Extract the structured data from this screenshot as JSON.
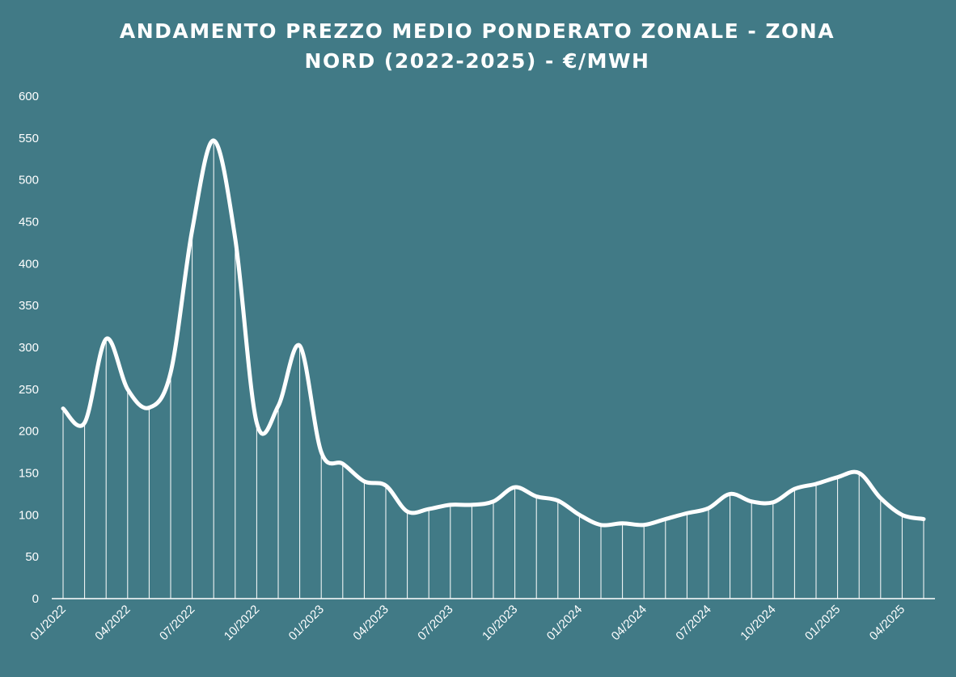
{
  "chart_data": {
    "type": "line",
    "title_lines": [
      "ANDAMENTO PREZZO MEDIO PONDERATO ZONALE - ZONA",
      "NORD (2022-2025)  - €/MWH"
    ],
    "xlabel": "",
    "ylabel": "",
    "ylim": [
      0,
      600
    ],
    "yticks": [
      0,
      50,
      100,
      150,
      200,
      250,
      300,
      350,
      400,
      450,
      500,
      550,
      600
    ],
    "xtick_labels": [
      "01/2022",
      "04/2022",
      "07/2022",
      "10/2022",
      "01/2023",
      "04/2023",
      "07/2023",
      "10/2023",
      "01/2024",
      "04/2024",
      "07/2024",
      "10/2024",
      "01/2025",
      "04/2025"
    ],
    "x": [
      "01/2022",
      "02/2022",
      "03/2022",
      "04/2022",
      "05/2022",
      "06/2022",
      "07/2022",
      "08/2022",
      "09/2022",
      "10/2022",
      "11/2022",
      "12/2022",
      "01/2023",
      "02/2023",
      "03/2023",
      "04/2023",
      "05/2023",
      "06/2023",
      "07/2023",
      "08/2023",
      "09/2023",
      "10/2023",
      "11/2023",
      "12/2023",
      "01/2024",
      "02/2024",
      "03/2024",
      "04/2024",
      "05/2024",
      "06/2024",
      "07/2024",
      "08/2024",
      "09/2024",
      "10/2024",
      "11/2024",
      "12/2024",
      "01/2025",
      "02/2025",
      "03/2025",
      "04/2025",
      "05/2025"
    ],
    "values": [
      227,
      210,
      310,
      250,
      228,
      270,
      440,
      547,
      430,
      210,
      230,
      302,
      175,
      161,
      140,
      135,
      104,
      107,
      112,
      112,
      116,
      133,
      122,
      117,
      100,
      88,
      90,
      88,
      95,
      102,
      108,
      125,
      116,
      115,
      131,
      137,
      145,
      150,
      120,
      100,
      95
    ],
    "grid": false,
    "drop_lines": true,
    "colors": {
      "background": "#417a86",
      "line": "#ffffff",
      "text": "#ffffff"
    }
  }
}
